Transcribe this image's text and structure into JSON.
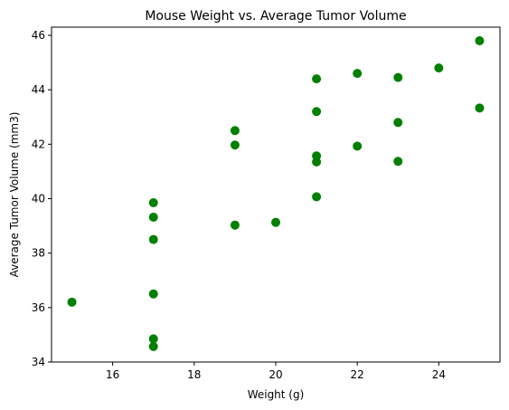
{
  "chart_data": {
    "type": "scatter",
    "title": "Mouse Weight vs. Average Tumor Volume",
    "xlabel": "Weight (g)",
    "ylabel": "Average Tumor Volume (mm3)",
    "xlim": [
      14.5,
      25.5
    ],
    "ylim": [
      34,
      46.3
    ],
    "xticks": [
      16,
      18,
      20,
      22,
      24
    ],
    "yticks": [
      34,
      36,
      38,
      40,
      42,
      44,
      46
    ],
    "grid": false,
    "marker_color": "#008000",
    "points": [
      {
        "x": 15,
        "y": 36.2
      },
      {
        "x": 17,
        "y": 39.85
      },
      {
        "x": 17,
        "y": 39.32
      },
      {
        "x": 17,
        "y": 38.5
      },
      {
        "x": 17,
        "y": 36.5
      },
      {
        "x": 17,
        "y": 34.85
      },
      {
        "x": 17,
        "y": 34.57
      },
      {
        "x": 19,
        "y": 42.5
      },
      {
        "x": 19,
        "y": 41.97
      },
      {
        "x": 19,
        "y": 39.03
      },
      {
        "x": 20,
        "y": 39.13
      },
      {
        "x": 21,
        "y": 44.4
      },
      {
        "x": 21,
        "y": 43.2
      },
      {
        "x": 21,
        "y": 41.57
      },
      {
        "x": 21,
        "y": 41.35
      },
      {
        "x": 21,
        "y": 40.07
      },
      {
        "x": 22,
        "y": 44.6
      },
      {
        "x": 22,
        "y": 41.93
      },
      {
        "x": 23,
        "y": 44.45
      },
      {
        "x": 23,
        "y": 42.8
      },
      {
        "x": 23,
        "y": 41.37
      },
      {
        "x": 24,
        "y": 44.8
      },
      {
        "x": 25,
        "y": 45.8
      },
      {
        "x": 25,
        "y": 43.33
      }
    ]
  }
}
